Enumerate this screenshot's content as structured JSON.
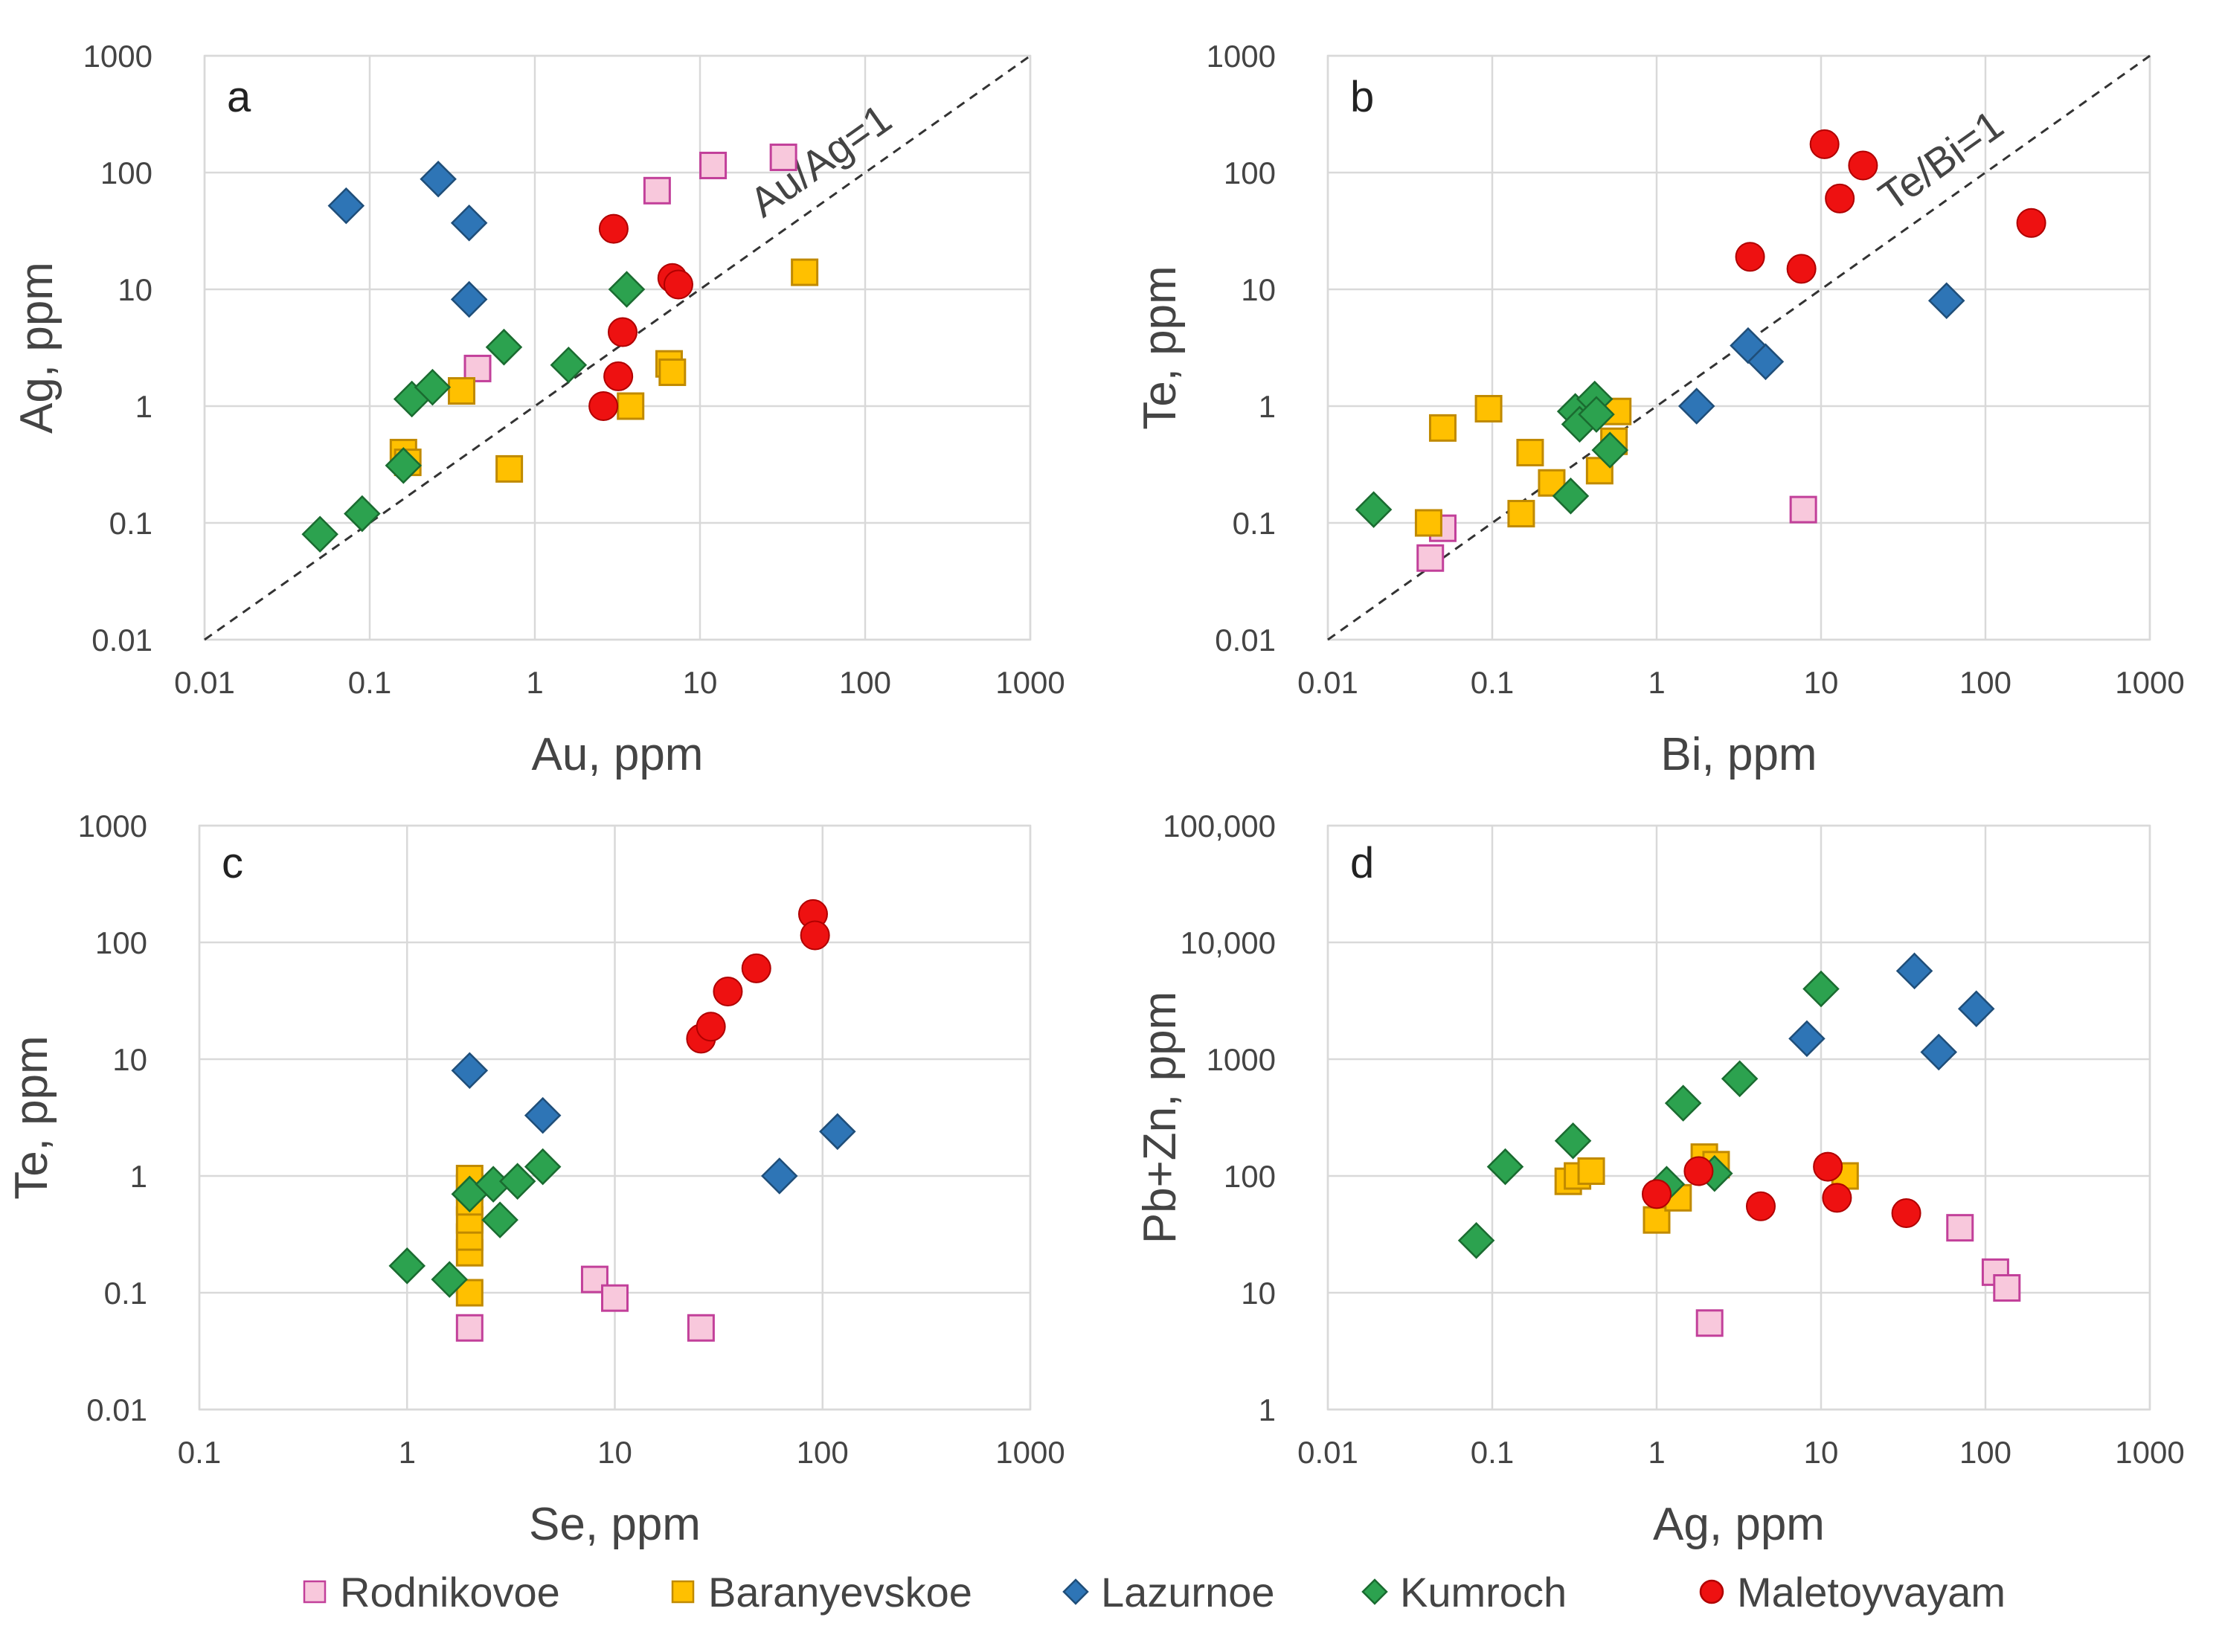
{
  "colors": {
    "Rodnikovoe": {
      "fill": "#f8c8dc",
      "stroke": "#c2409a",
      "shape": "square"
    },
    "Baranyevskoe": {
      "fill": "#ffc000",
      "stroke": "#c08a00",
      "shape": "square"
    },
    "Lazurnoe": {
      "fill": "#2e75b6",
      "stroke": "#1f4e79",
      "shape": "diamond"
    },
    "Kumroch": {
      "fill": "#2ca24f",
      "stroke": "#1a6b30",
      "shape": "diamond"
    },
    "Maletoyvayam": {
      "fill": "#ee1111",
      "stroke": "#b00000",
      "shape": "circle"
    }
  },
  "legend": [
    "Rodnikovoe",
    "Baranyevskoe",
    "Lazurnoe",
    "Kumroch",
    "Maletoyvayam"
  ],
  "chart_data": [
    {
      "panel": "a",
      "type": "scatter",
      "xlabel": "Au, ppm",
      "ylabel": "Ag, ppm",
      "xscale": "log",
      "yscale": "log",
      "xlim": [
        0.01,
        1000
      ],
      "ylim": [
        0.01,
        1000
      ],
      "xticks": [
        "0.01",
        "0.1",
        "1",
        "10",
        "100",
        "1000"
      ],
      "yticks": [
        "0.01",
        "0.1",
        "1",
        "10",
        "100",
        "1000"
      ],
      "refline": {
        "label": "Au/Ag=1",
        "from": [
          0.01,
          0.01
        ],
        "to": [
          1000,
          1000
        ]
      },
      "series": [
        {
          "name": "Rodnikovoe",
          "x": [
            0.45,
            5.5,
            12,
            32
          ],
          "y": [
            2.1,
            70,
            115,
            135
          ]
        },
        {
          "name": "Baranyevskoe",
          "x": [
            0.16,
            0.17,
            0.36,
            0.7,
            3.8,
            6.5,
            6.8,
            43
          ],
          "y": [
            0.4,
            0.33,
            1.35,
            0.29,
            1.0,
            2.3,
            1.95,
            14
          ]
        },
        {
          "name": "Lazurnoe",
          "x": [
            0.072,
            0.26,
            0.4,
            0.4
          ],
          "y": [
            52,
            88,
            37,
            8.2
          ]
        },
        {
          "name": "Kumroch",
          "x": [
            0.05,
            0.09,
            0.16,
            0.18,
            0.24,
            0.65,
            1.6,
            3.6
          ],
          "y": [
            0.08,
            0.12,
            0.31,
            1.15,
            1.45,
            3.2,
            2.25,
            10
          ]
        },
        {
          "name": "Maletoyvayam",
          "x": [
            2.6,
            3.0,
            3.2,
            3.4,
            6.8,
            7.4
          ],
          "y": [
            1.0,
            33,
            1.8,
            4.3,
            12.5,
            11
          ]
        }
      ]
    },
    {
      "panel": "b",
      "type": "scatter",
      "xlabel": "Bi, ppm",
      "ylabel": "Te, ppm",
      "xscale": "log",
      "yscale": "log",
      "xlim": [
        0.01,
        1000
      ],
      "ylim": [
        0.01,
        1000
      ],
      "xticks": [
        "0.01",
        "0.1",
        "1",
        "10",
        "100",
        "1000"
      ],
      "yticks": [
        "0.01",
        "0.1",
        "1",
        "10",
        "100",
        "1000"
      ],
      "refline": {
        "label": "Te/Bi=1",
        "from": [
          0.01,
          0.01
        ],
        "to": [
          1000,
          1000
        ]
      },
      "series": [
        {
          "name": "Rodnikovoe",
          "x": [
            0.042,
            0.05,
            7.8
          ],
          "y": [
            0.05,
            0.09,
            0.13
          ]
        },
        {
          "name": "Baranyevskoe",
          "x": [
            0.041,
            0.05,
            0.095,
            0.17,
            0.23,
            0.15,
            0.45,
            0.55,
            0.58
          ],
          "y": [
            0.1,
            0.65,
            0.95,
            0.4,
            0.22,
            0.12,
            0.28,
            0.5,
            0.9
          ]
        },
        {
          "name": "Lazurnoe",
          "x": [
            1.75,
            3.6,
            4.6,
            58
          ],
          "y": [
            1.0,
            3.3,
            2.4,
            8.0
          ]
        },
        {
          "name": "Kumroch",
          "x": [
            0.019,
            0.3,
            0.32,
            0.34,
            0.42,
            0.43,
            0.52
          ],
          "y": [
            0.13,
            0.17,
            0.9,
            0.7,
            1.15,
            0.85,
            0.42
          ]
        },
        {
          "name": "Maletoyvayam",
          "x": [
            3.7,
            7.6,
            10.5,
            13,
            18,
            190
          ],
          "y": [
            19,
            15,
            175,
            60,
            115,
            37
          ]
        }
      ]
    },
    {
      "panel": "c",
      "type": "scatter",
      "xlabel": "Se, ppm",
      "ylabel": "Te, ppm",
      "xscale": "log",
      "yscale": "log",
      "xlim": [
        0.1,
        1000
      ],
      "ylim": [
        0.01,
        1000
      ],
      "xticks": [
        "0.1",
        "1",
        "10",
        "100",
        "1000"
      ],
      "yticks": [
        "0.01",
        "0.1",
        "1",
        "10",
        "100",
        "1000"
      ],
      "series": [
        {
          "name": "Rodnikovoe",
          "x": [
            2.0,
            8.0,
            10,
            26
          ],
          "y": [
            0.05,
            0.13,
            0.09,
            0.05
          ]
        },
        {
          "name": "Baranyevskoe",
          "x": [
            2.0,
            2.0,
            2.0,
            2.0,
            2.0,
            2.0,
            2.0
          ],
          "y": [
            0.1,
            0.22,
            0.3,
            0.42,
            0.6,
            0.8,
            0.95
          ]
        },
        {
          "name": "Lazurnoe",
          "x": [
            2.0,
            4.5,
            62,
            118
          ],
          "y": [
            8.0,
            3.3,
            1.0,
            2.4
          ]
        },
        {
          "name": "Kumroch",
          "x": [
            1.0,
            1.6,
            2.0,
            2.6,
            2.8,
            3.4,
            4.5
          ],
          "y": [
            0.17,
            0.13,
            0.7,
            0.85,
            0.42,
            0.9,
            1.2
          ]
        },
        {
          "name": "Maletoyvayam",
          "x": [
            26,
            29,
            35,
            48,
            90,
            92
          ],
          "y": [
            15,
            19,
            38,
            60,
            175,
            115
          ]
        }
      ]
    },
    {
      "panel": "d",
      "type": "scatter",
      "xlabel": "Ag, ppm",
      "ylabel": "Pb+Zn, ppm",
      "xscale": "log",
      "yscale": "log",
      "xlim": [
        0.01,
        1000
      ],
      "ylim": [
        1,
        100000
      ],
      "xticks": [
        "0.01",
        "0.1",
        "1",
        "10",
        "100",
        "1000"
      ],
      "yticks": [
        "1",
        "10",
        "100",
        "1000",
        "10,000",
        "100,000"
      ],
      "series": [
        {
          "name": "Rodnikovoe",
          "x": [
            2.1,
            70,
            115,
            135
          ],
          "y": [
            5.5,
            36,
            15,
            11
          ]
        },
        {
          "name": "Baranyevskoe",
          "x": [
            0.29,
            0.33,
            0.4,
            1.0,
            1.35,
            1.95,
            2.3,
            14
          ],
          "y": [
            90,
            100,
            110,
            42,
            65,
            145,
            125,
            100
          ]
        },
        {
          "name": "Lazurnoe",
          "x": [
            8.2,
            37,
            52,
            88
          ],
          "y": [
            1500,
            5700,
            1150,
            2700
          ]
        },
        {
          "name": "Kumroch",
          "x": [
            0.08,
            0.12,
            0.31,
            1.15,
            1.45,
            2.25,
            3.2,
            10
          ],
          "y": [
            28,
            120,
            200,
            85,
            420,
            105,
            680,
            4000
          ]
        },
        {
          "name": "Maletoyvayam",
          "x": [
            1.0,
            1.8,
            4.3,
            11,
            12.5,
            33
          ],
          "y": [
            70,
            110,
            55,
            120,
            65,
            48
          ]
        }
      ]
    }
  ]
}
